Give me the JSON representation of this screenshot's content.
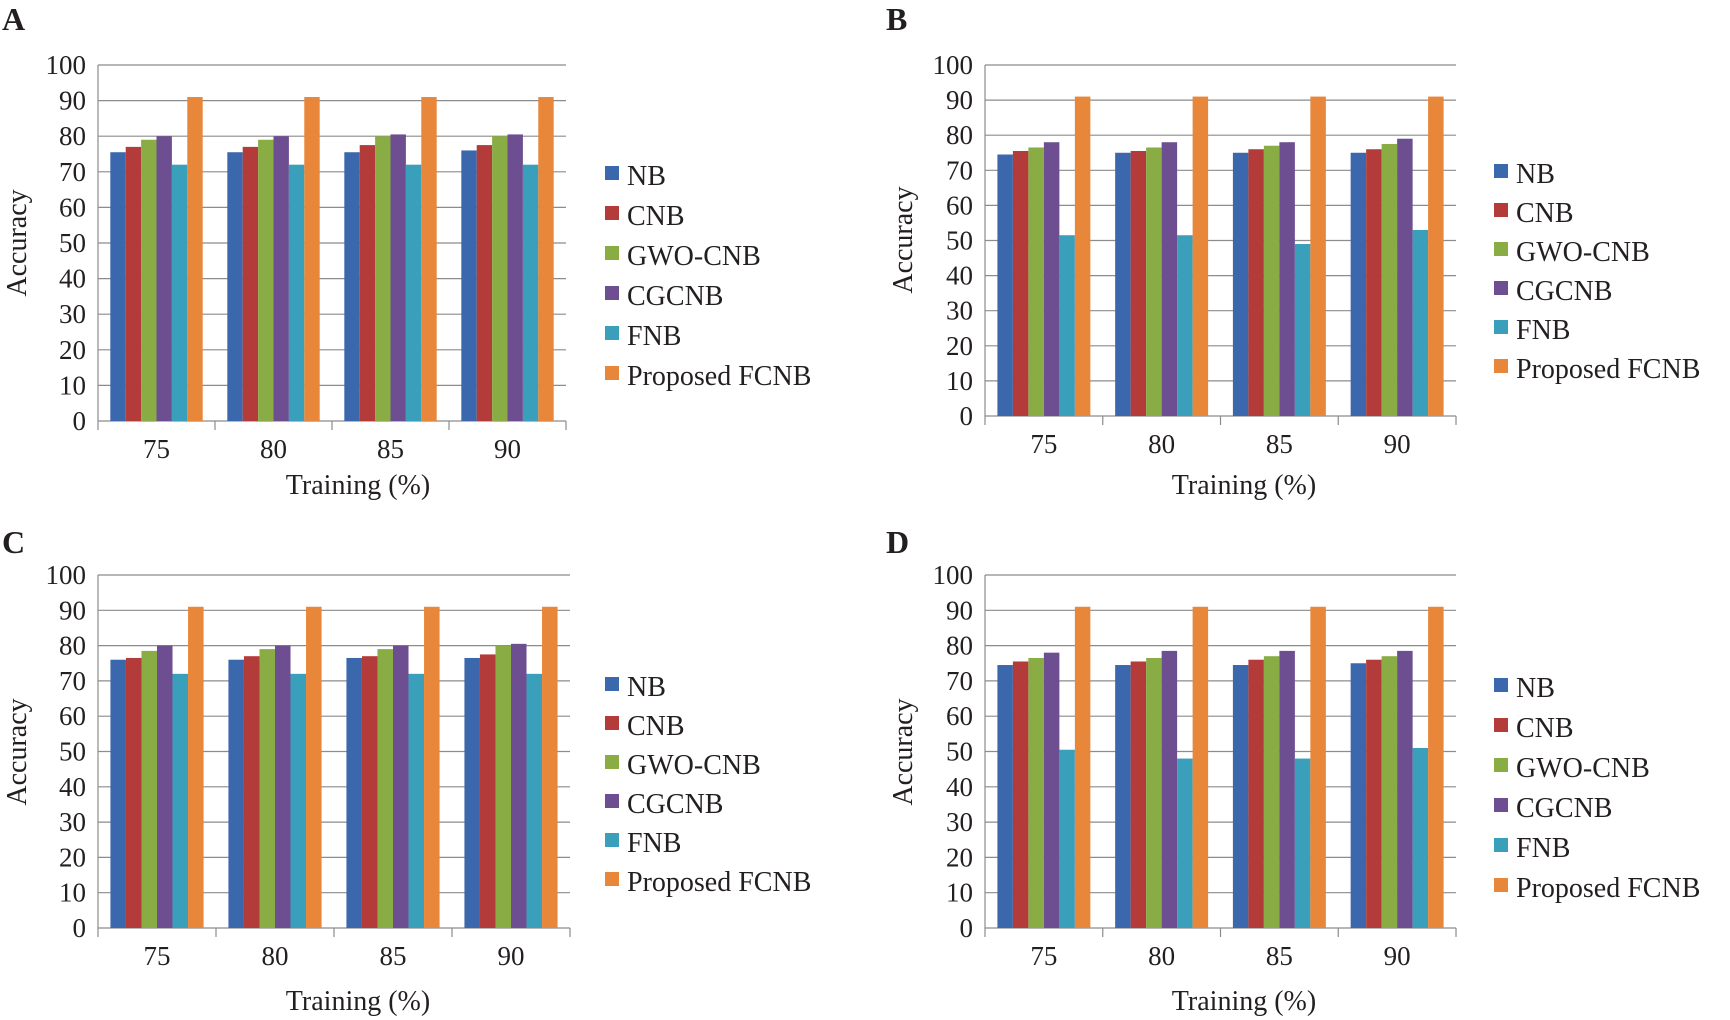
{
  "colors": {
    "NB": "#3b68ad",
    "CNB": "#b33b39",
    "GWO-CNB": "#8aac45",
    "CGCNB": "#6c4e91",
    "FNB": "#3a9fba",
    "Proposed FCNB": "#e8863a"
  },
  "chart_data": [
    {
      "panel": "A",
      "type": "bar",
      "xlabel": "Training (%)",
      "ylabel": "Accuracy",
      "ylim": [
        0,
        100
      ],
      "yticks": [
        "0",
        "10",
        "20",
        "30",
        "40",
        "50",
        "60",
        "70",
        "80",
        "90",
        "100"
      ],
      "grid": true,
      "legend_position": "right",
      "categories": [
        "75",
        "80",
        "85",
        "90"
      ],
      "series": [
        {
          "name": "NB",
          "values": [
            75.5,
            75.5,
            75.5,
            76
          ]
        },
        {
          "name": "CNB",
          "values": [
            77,
            77,
            77.5,
            77.5
          ]
        },
        {
          "name": "GWO-CNB",
          "values": [
            79,
            79,
            80,
            80
          ]
        },
        {
          "name": "CGCNB",
          "values": [
            80,
            80,
            80.5,
            80.5
          ]
        },
        {
          "name": "FNB",
          "values": [
            72,
            72,
            72,
            72
          ]
        },
        {
          "name": "Proposed FCNB",
          "values": [
            91,
            91,
            91,
            91
          ]
        }
      ]
    },
    {
      "panel": "B",
      "type": "bar",
      "xlabel": "Training (%)",
      "ylabel": "Accuracy",
      "ylim": [
        0,
        100
      ],
      "yticks": [
        "0",
        "10",
        "20",
        "30",
        "40",
        "50",
        "60",
        "70",
        "80",
        "90",
        "100"
      ],
      "grid": true,
      "legend_position": "right",
      "categories": [
        "75",
        "80",
        "85",
        "90"
      ],
      "series": [
        {
          "name": "NB",
          "values": [
            74.5,
            75,
            75,
            75
          ]
        },
        {
          "name": "CNB",
          "values": [
            75.5,
            75.5,
            76,
            76
          ]
        },
        {
          "name": "GWO-CNB",
          "values": [
            76.5,
            76.5,
            77,
            77.5
          ]
        },
        {
          "name": "CGCNB",
          "values": [
            78,
            78,
            78,
            79
          ]
        },
        {
          "name": "FNB",
          "values": [
            51.5,
            51.5,
            49,
            53
          ]
        },
        {
          "name": "Proposed FCNB",
          "values": [
            91,
            91,
            91,
            91
          ]
        }
      ]
    },
    {
      "panel": "C",
      "type": "bar",
      "xlabel": "Training (%)",
      "ylabel": "Accuracy",
      "ylim": [
        0,
        100
      ],
      "yticks": [
        "0",
        "10",
        "20",
        "30",
        "40",
        "50",
        "60",
        "70",
        "80",
        "90",
        "100"
      ],
      "grid": true,
      "legend_position": "right",
      "categories": [
        "75",
        "80",
        "85",
        "90"
      ],
      "series": [
        {
          "name": "NB",
          "values": [
            76,
            76,
            76.5,
            76.5
          ]
        },
        {
          "name": "CNB",
          "values": [
            76.5,
            77,
            77,
            77.5
          ]
        },
        {
          "name": "GWO-CNB",
          "values": [
            78.5,
            79,
            79,
            80
          ]
        },
        {
          "name": "CGCNB",
          "values": [
            80,
            80,
            80,
            80.5
          ]
        },
        {
          "name": "FNB",
          "values": [
            72,
            72,
            72,
            72
          ]
        },
        {
          "name": "Proposed FCNB",
          "values": [
            91,
            91,
            91,
            91
          ]
        }
      ]
    },
    {
      "panel": "D",
      "type": "bar",
      "xlabel": "Training (%)",
      "ylabel": "Accuracy",
      "ylim": [
        0,
        100
      ],
      "yticks": [
        "0",
        "10",
        "20",
        "30",
        "40",
        "50",
        "60",
        "70",
        "80",
        "90",
        "100"
      ],
      "grid": true,
      "legend_position": "right",
      "categories": [
        "75",
        "80",
        "85",
        "90"
      ],
      "series": [
        {
          "name": "NB",
          "values": [
            74.5,
            74.5,
            74.5,
            75
          ]
        },
        {
          "name": "CNB",
          "values": [
            75.5,
            75.5,
            76,
            76
          ]
        },
        {
          "name": "GWO-CNB",
          "values": [
            76.5,
            76.5,
            77,
            77
          ]
        },
        {
          "name": "CGCNB",
          "values": [
            78,
            78.5,
            78.5,
            78.5
          ]
        },
        {
          "name": "FNB",
          "values": [
            50.5,
            48,
            48,
            51
          ]
        },
        {
          "name": "Proposed FCNB",
          "values": [
            91,
            91,
            91,
            91
          ]
        }
      ]
    }
  ]
}
